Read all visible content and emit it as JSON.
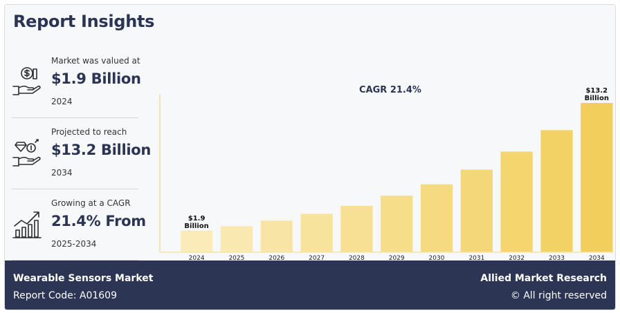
{
  "header": {
    "title": "Report Insights"
  },
  "stats": [
    {
      "caption": "Market was valued at",
      "value": "$1.9 Billion",
      "year": "2024",
      "icon": "money-hand-icon"
    },
    {
      "caption": "Projected to reach",
      "value": "$13.2 Billion",
      "year": "2034",
      "icon": "diamond-coin-hand-icon"
    },
    {
      "caption": "Growing at a CAGR",
      "value": "21.4% From",
      "year": "2025-2034",
      "icon": "growth-chart-icon"
    }
  ],
  "chart_data": {
    "type": "bar",
    "title": "CAGR 21.4%",
    "categories": [
      "2024",
      "2025",
      "2026",
      "2027",
      "2028",
      "2029",
      "2030",
      "2031",
      "2032",
      "2033",
      "2034"
    ],
    "values": [
      1.9,
      2.3,
      2.8,
      3.4,
      4.1,
      5.0,
      6.0,
      7.3,
      8.9,
      10.8,
      13.2
    ],
    "labels": [
      {
        "index": 0,
        "lines": [
          "$1.9",
          "Billion"
        ]
      },
      {
        "index": 10,
        "lines": [
          "$13.2",
          "Billion"
        ]
      }
    ],
    "ylim": [
      0,
      13.2
    ],
    "xlabel": "",
    "ylabel": "",
    "colors": {
      "start": "#faebb8",
      "end": "#f2cf5c",
      "axis": "#f3e4a8"
    }
  },
  "footer": {
    "market": "Wearable Sensors Market",
    "report_code": "Report Code: A01609",
    "brand": "Allied Market Research",
    "rights": "© All right reserved"
  }
}
